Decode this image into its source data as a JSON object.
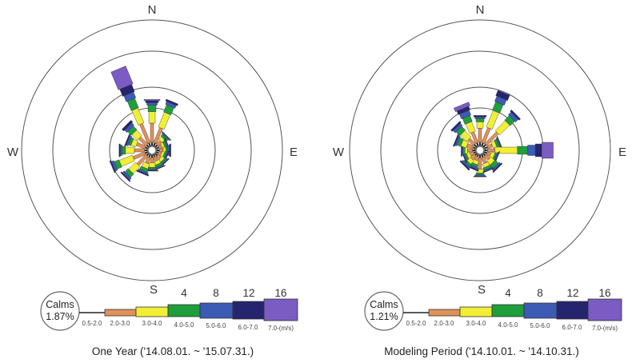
{
  "chart_data": [
    {
      "type": "windrose",
      "caption": "One Year ('14.08.01. ~ '15.07.31.)",
      "directions": [
        "N",
        "E",
        "S",
        "W"
      ],
      "rings_pct": [
        4,
        8,
        12,
        16
      ],
      "calms_label": "Calms",
      "calms_value": "1.87%",
      "speed_classes": [
        "0.5-2.0",
        "2.0-3.0",
        "3.0-4.0",
        "4.0-5.0",
        "5.0-6.0",
        "6.0-7.0",
        "7.0-(m/s)"
      ],
      "sectors": [
        "N",
        "NNE",
        "NE",
        "ENE",
        "E",
        "ESE",
        "SE",
        "SSE",
        "S",
        "SSW",
        "SW",
        "WSW",
        "W",
        "WNW",
        "NW",
        "NNW"
      ],
      "frequencies_pct": [
        [
          0.5,
          3.0,
          1.8,
          1.0,
          0.4,
          0.3,
          0.2
        ],
        [
          0.5,
          2.5,
          2.5,
          1.2,
          0.5,
          0.3,
          0.0
        ],
        [
          0.4,
          0.8,
          0.6,
          0.4,
          0.2,
          0.1,
          0.0
        ],
        [
          0.4,
          0.5,
          0.4,
          0.3,
          0.2,
          0.1,
          0.0
        ],
        [
          0.4,
          0.6,
          0.4,
          0.3,
          0.3,
          0.2,
          0.0
        ],
        [
          0.3,
          0.5,
          0.4,
          0.3,
          0.2,
          0.1,
          0.0
        ],
        [
          0.4,
          0.6,
          0.5,
          0.3,
          0.2,
          0.1,
          0.0
        ],
        [
          0.3,
          0.7,
          0.6,
          0.4,
          0.2,
          0.1,
          0.0
        ],
        [
          0.4,
          0.8,
          0.7,
          0.3,
          0.2,
          0.1,
          0.0
        ],
        [
          0.4,
          1.0,
          0.8,
          0.5,
          0.3,
          0.2,
          0.0
        ],
        [
          0.4,
          2.0,
          1.5,
          0.7,
          0.4,
          0.2,
          0.0
        ],
        [
          0.4,
          2.0,
          2.2,
          0.8,
          0.4,
          0.2,
          0.0
        ],
        [
          0.4,
          1.6,
          1.4,
          0.5,
          0.3,
          0.2,
          0.0
        ],
        [
          0.4,
          1.4,
          0.8,
          0.4,
          0.3,
          0.2,
          0.0
        ],
        [
          0.4,
          1.6,
          1.2,
          0.8,
          0.5,
          0.4,
          0.0
        ],
        [
          0.5,
          3.2,
          2.5,
          1.6,
          1.0,
          1.2,
          3.0
        ]
      ]
    },
    {
      "type": "windrose",
      "caption": "Modeling Period ('14.10.01. ~ '14.10.31.)",
      "directions": [
        "N",
        "E",
        "S",
        "W"
      ],
      "rings_pct": [
        4,
        8,
        12,
        16
      ],
      "calms_label": "Calms",
      "calms_value": "1.21%",
      "speed_classes": [
        "0.5-2.0",
        "2.0-3.0",
        "3.0-4.0",
        "4.0-5.0",
        "5.0-6.0",
        "6.0-7.0",
        "7.0-(m/s)"
      ],
      "sectors": [
        "N",
        "NNE",
        "NE",
        "ENE",
        "E",
        "ESE",
        "SE",
        "SSE",
        "S",
        "SSW",
        "SW",
        "WSW",
        "W",
        "WNW",
        "NW",
        "NNW"
      ],
      "frequencies_pct": [
        [
          0.5,
          2.2,
          1.0,
          0.5,
          0.3,
          0.2,
          0.0
        ],
        [
          0.5,
          2.5,
          2.8,
          1.4,
          0.9,
          0.9,
          0.0
        ],
        [
          0.5,
          2.6,
          2.2,
          1.0,
          0.6,
          0.3,
          0.0
        ],
        [
          0.5,
          0.8,
          0.6,
          0.4,
          0.2,
          0.1,
          0.0
        ],
        [
          0.4,
          1.2,
          3.5,
          1.6,
          1.2,
          1.0,
          1.8
        ],
        [
          0.4,
          0.6,
          0.6,
          0.3,
          0.2,
          0.1,
          0.0
        ],
        [
          0.4,
          0.8,
          0.8,
          0.7,
          0.3,
          0.2,
          0.0
        ],
        [
          0.4,
          1.0,
          0.6,
          0.4,
          0.2,
          0.1,
          0.0
        ],
        [
          0.4,
          1.8,
          0.6,
          0.3,
          0.2,
          0.1,
          0.0
        ],
        [
          0.3,
          0.6,
          0.6,
          0.4,
          0.3,
          0.2,
          0.0
        ],
        [
          0.3,
          0.8,
          0.7,
          0.4,
          0.3,
          0.2,
          0.0
        ],
        [
          0.3,
          0.6,
          0.5,
          0.3,
          0.2,
          0.1,
          0.0
        ],
        [
          0.4,
          0.8,
          0.4,
          0.3,
          0.2,
          0.1,
          0.0
        ],
        [
          0.4,
          1.0,
          0.9,
          0.6,
          0.3,
          0.2,
          0.0
        ],
        [
          0.5,
          1.2,
          1.4,
          0.8,
          0.5,
          0.3,
          0.0
        ],
        [
          0.5,
          1.8,
          1.6,
          1.0,
          0.8,
          0.6,
          0.6
        ]
      ]
    }
  ],
  "colors": {
    "speed": [
      "#222222",
      "#e0915a",
      "#f2ee36",
      "#1f9e3c",
      "#3c5bb5",
      "#25246f",
      "#7b5cc2"
    ],
    "ring": "#555555",
    "text": "#333333"
  }
}
